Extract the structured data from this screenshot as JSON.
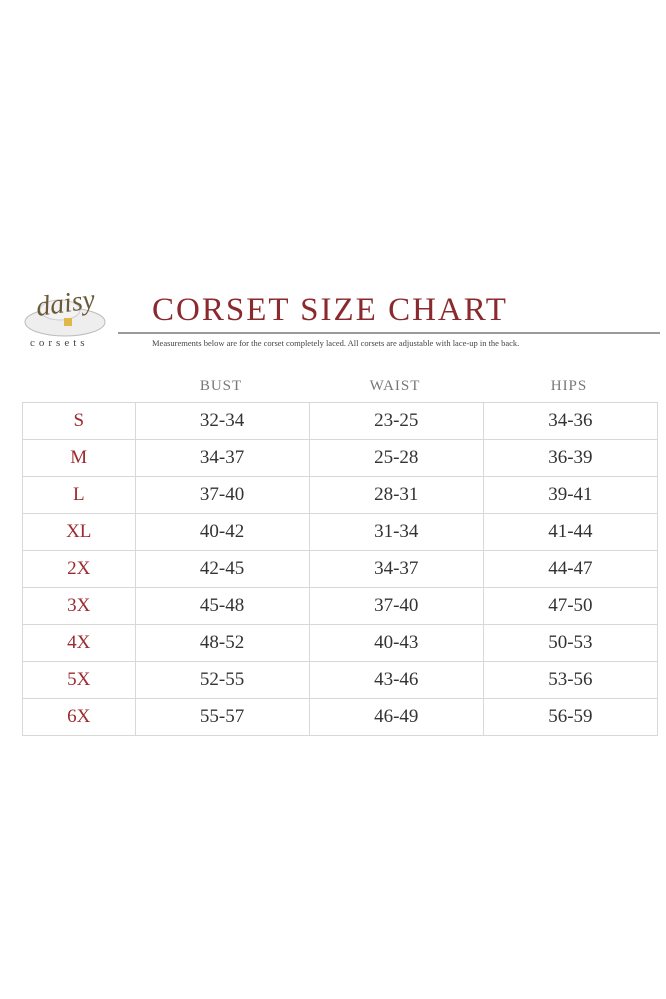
{
  "logo": {
    "word": "daisy",
    "sub": "corsets"
  },
  "title": "CORSET SIZE CHART",
  "subtitle": "Measurements below are for the corset completely laced. All corsets are adjustable with lace-up in the back.",
  "columns": [
    "BUST",
    "WAIST",
    "HIPS"
  ],
  "rows": [
    {
      "size": "S",
      "bust": "32-34",
      "waist": "23-25",
      "hips": "34-36"
    },
    {
      "size": "M",
      "bust": "34-37",
      "waist": "25-28",
      "hips": "36-39"
    },
    {
      "size": "L",
      "bust": "37-40",
      "waist": "28-31",
      "hips": "39-41"
    },
    {
      "size": "XL",
      "bust": "40-42",
      "waist": "31-34",
      "hips": "41-44"
    },
    {
      "size": "2X",
      "bust": "42-45",
      "waist": "34-37",
      "hips": "44-47"
    },
    {
      "size": "3X",
      "bust": "45-48",
      "waist": "37-40",
      "hips": "47-50"
    },
    {
      "size": "4X",
      "bust": "48-52",
      "waist": "40-43",
      "hips": "50-53"
    },
    {
      "size": "5X",
      "bust": "52-55",
      "waist": "43-46",
      "hips": "53-56"
    },
    {
      "size": "6X",
      "bust": "55-57",
      "waist": "46-49",
      "hips": "56-59"
    }
  ],
  "colors": {
    "title": "#8b2a2e",
    "size_labels": "#9b2b30"
  }
}
